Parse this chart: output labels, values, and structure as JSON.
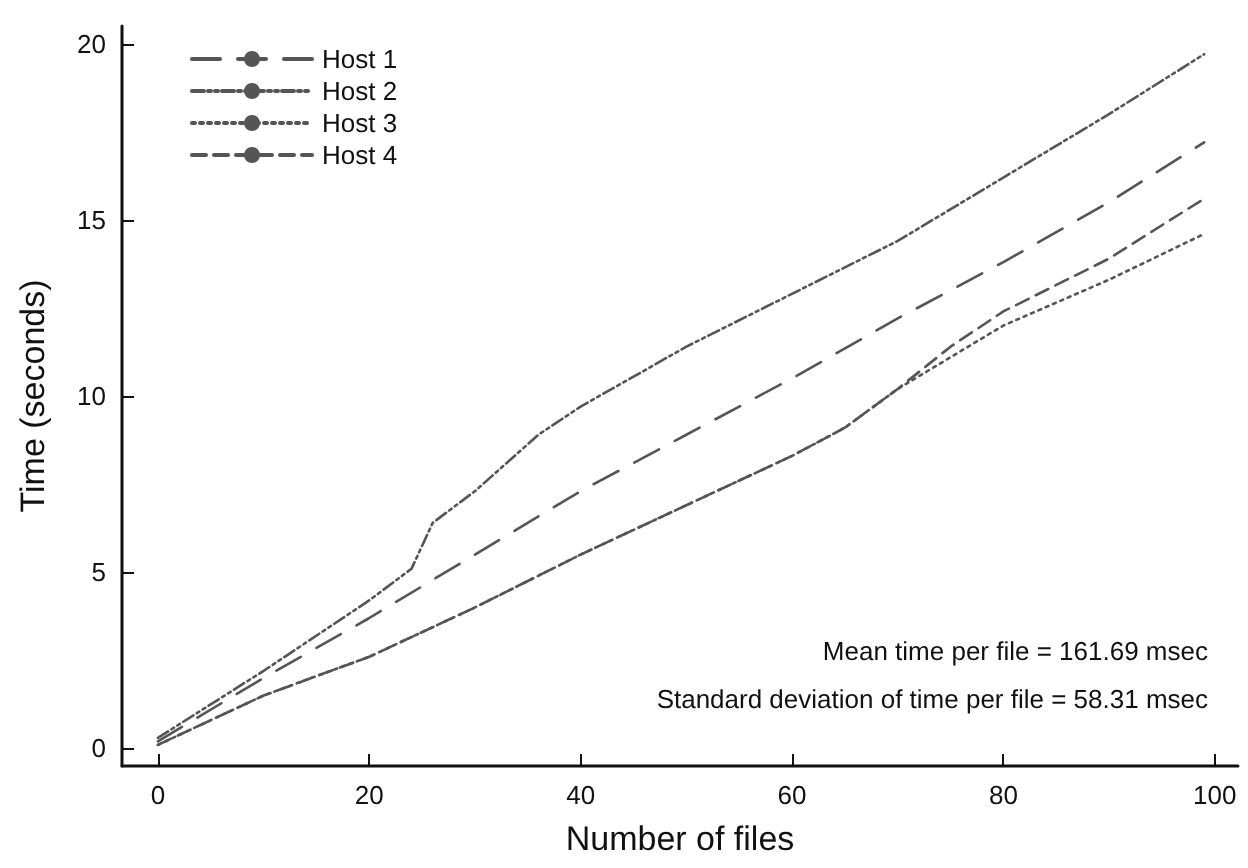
{
  "chart_data": {
    "type": "line",
    "xlabel": "Number of files",
    "ylabel": "Time (seconds)",
    "xlim": [
      -3.4,
      102.2
    ],
    "ylim": [
      -0.5,
      20.5
    ],
    "xticks": [
      0,
      20,
      40,
      60,
      80,
      100
    ],
    "yticks": [
      0,
      5,
      10,
      15,
      20
    ],
    "grid": false,
    "legend": "top left",
    "marker": "none",
    "annotations": [
      "Mean time per file = 161.69 msec",
      "Standard deviation of time per file = 58.31 msec"
    ],
    "series": [
      {
        "name": "Host 1",
        "color": "#555555",
        "line_style": "longdash",
        "x": [
          0,
          10,
          20,
          30,
          40,
          50,
          60,
          70,
          80,
          90,
          99
        ],
        "values": [
          0.2,
          2.0,
          3.7,
          5.5,
          7.3,
          8.9,
          10.5,
          12.2,
          13.8,
          15.5,
          17.2
        ]
      },
      {
        "name": "Host 2",
        "color": "#555555",
        "line_style": "dashdotdot",
        "x": [
          0,
          10,
          20,
          24,
          26,
          30,
          36,
          40,
          50,
          60,
          70,
          80,
          90,
          99
        ],
        "values": [
          0.3,
          2.2,
          4.2,
          5.1,
          6.4,
          7.3,
          8.9,
          9.7,
          11.4,
          12.9,
          14.4,
          16.2,
          18.0,
          19.7
        ]
      },
      {
        "name": "Host 3",
        "color": "#555555",
        "line_style": "dotted",
        "x": [
          0,
          10,
          20,
          30,
          40,
          50,
          60,
          65,
          70,
          80,
          90,
          99
        ],
        "values": [
          0.1,
          1.5,
          2.6,
          4.0,
          5.5,
          6.9,
          8.3,
          9.1,
          10.2,
          12.0,
          13.3,
          14.6
        ]
      },
      {
        "name": "Host 4",
        "color": "#555555",
        "line_style": "dashed",
        "x": [
          0,
          10,
          20,
          30,
          40,
          50,
          60,
          65,
          70,
          75,
          80,
          90,
          99
        ],
        "values": [
          0.1,
          1.5,
          2.6,
          4.0,
          5.5,
          6.9,
          8.3,
          9.1,
          10.2,
          11.4,
          12.4,
          13.9,
          15.6
        ]
      }
    ]
  }
}
